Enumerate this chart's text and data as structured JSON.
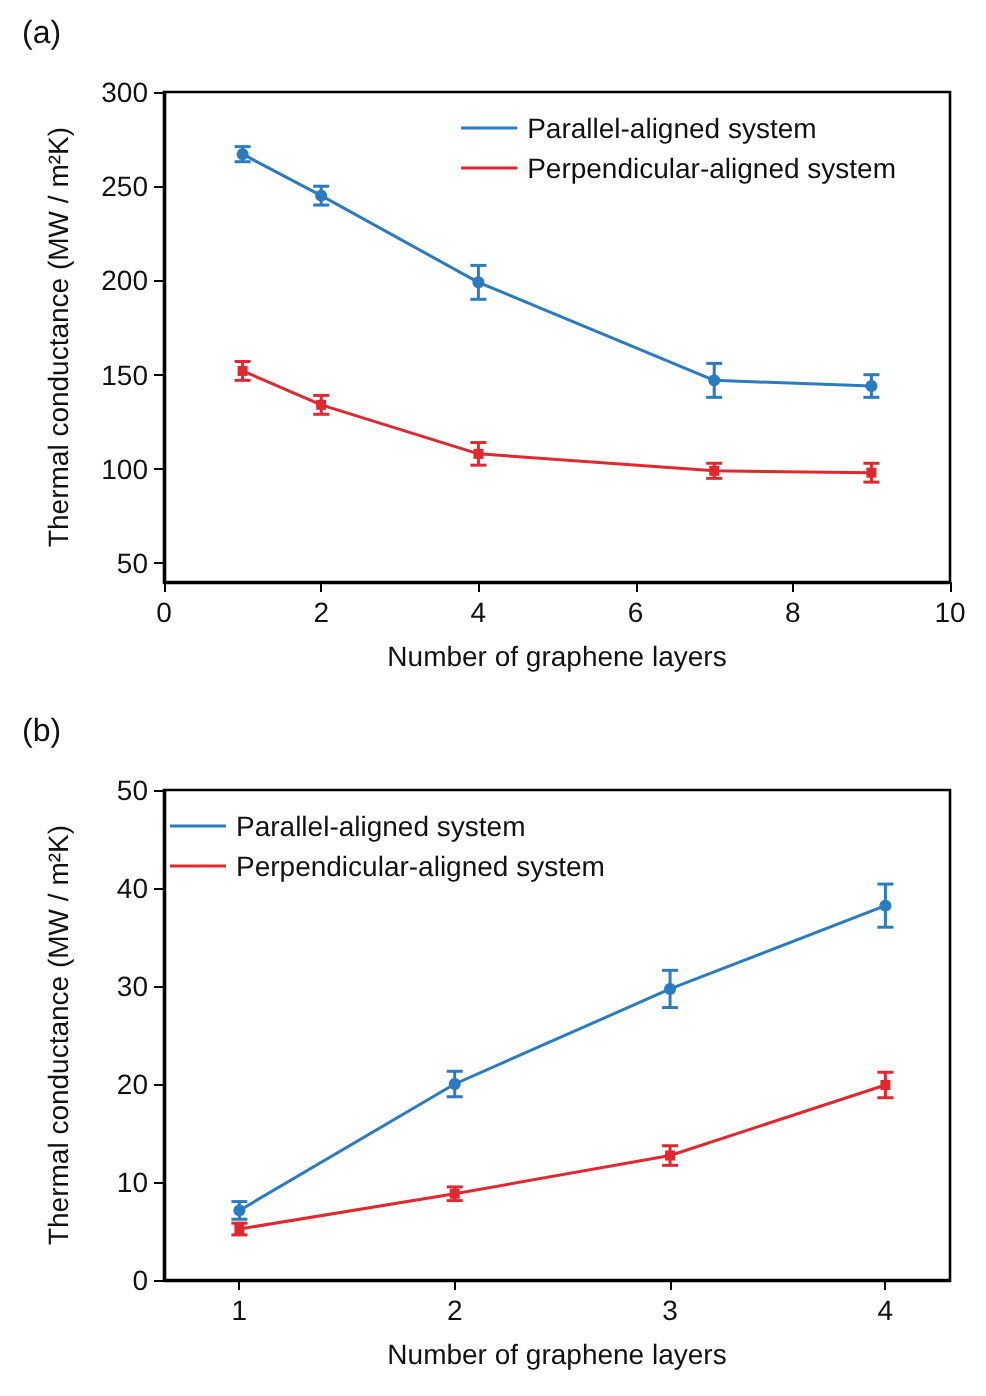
{
  "chart_data": [
    {
      "type": "line",
      "title": "(a)",
      "xlabel": "Number of graphene layers",
      "ylabel": "Thermal conductance (MW / m²K)",
      "x": [
        1,
        2,
        4,
        7,
        9
      ],
      "xlim": [
        0,
        10
      ],
      "xticks": [
        0,
        2,
        4,
        6,
        8,
        10
      ],
      "ylim": [
        40,
        300
      ],
      "yticks": [
        50,
        100,
        150,
        200,
        250,
        300
      ],
      "grid": false,
      "legend": "top right",
      "series": [
        {
          "name": "Parallel-aligned system",
          "color": "#2a7bbf",
          "marker": "circle",
          "values": [
            267,
            245,
            199,
            147,
            144
          ],
          "errors": [
            4,
            5,
            9,
            9,
            6
          ]
        },
        {
          "name": "Perpendicular-aligned system",
          "color": "#e0282e",
          "marker": "square",
          "values": [
            152,
            134,
            108,
            99,
            98
          ],
          "errors": [
            5,
            5,
            6,
            4,
            5
          ]
        }
      ]
    },
    {
      "type": "line",
      "title": "(b)",
      "xlabel": "Number of graphene layers",
      "ylabel": "Thermal conductance (MW / m²K)",
      "x": [
        1,
        2,
        3,
        4
      ],
      "xlim": [
        0.65,
        4.3
      ],
      "xticks": [
        1,
        2,
        3,
        4
      ],
      "ylim": [
        0,
        50
      ],
      "yticks": [
        0,
        10,
        20,
        30,
        40,
        50
      ],
      "grid": false,
      "legend": "top left",
      "series": [
        {
          "name": "Parallel-aligned system",
          "color": "#2a7bbf",
          "marker": "circle",
          "values": [
            7.1,
            20,
            29.7,
            38.2
          ],
          "errors": [
            0.9,
            1.3,
            1.9,
            2.2
          ]
        },
        {
          "name": "Perpendicular-aligned system",
          "color": "#e0282e",
          "marker": "square",
          "values": [
            5.2,
            8.8,
            12.7,
            19.9
          ],
          "errors": [
            0.6,
            0.7,
            1.0,
            1.3
          ]
        }
      ]
    }
  ]
}
